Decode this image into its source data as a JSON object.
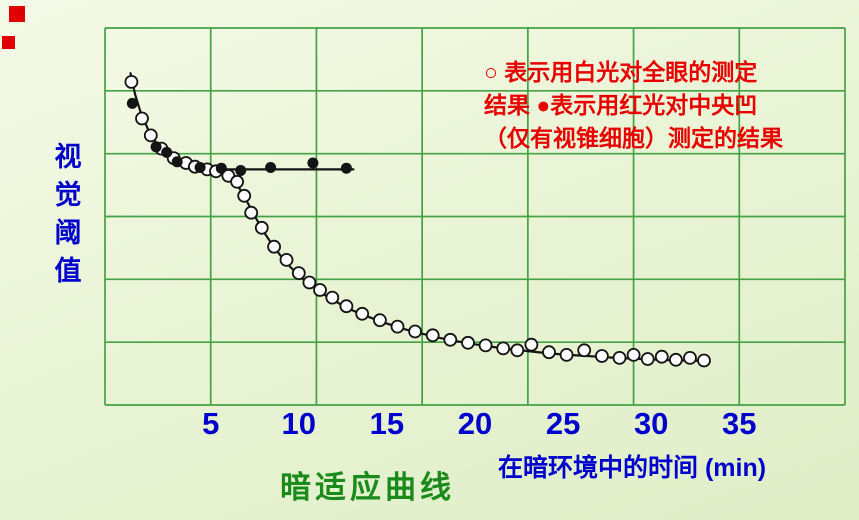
{
  "page": {
    "watermark_color": "#e00000",
    "background_top": "#f5fae8",
    "background_bottom": "#dfeec7"
  },
  "chart_data": {
    "type": "scatter",
    "title": "暗适应曲线",
    "xlabel": "在暗环境中的时间 (min)",
    "ylabel": "视觉阈值",
    "ylabel_chars": [
      "视",
      "觉",
      "阈",
      "值"
    ],
    "x_ticks": [
      5,
      10,
      15,
      20,
      25,
      30,
      35
    ],
    "xlim": [
      -1,
      41
    ],
    "ylim": [
      0,
      10
    ],
    "grid": {
      "on": true,
      "v_lines": 8,
      "h_lines": 7
    },
    "colors": {
      "grid": "#44a244",
      "curve": "#141414",
      "marker_fill": "#ffffff",
      "text_blue": "#0000cc",
      "legend_red": "#e80000",
      "title_green": "#1a8a1a"
    },
    "legend": {
      "position": "top-right",
      "lines": [
        "○  表示用白光对全眼的测定",
        "结果  ●表示用红光对中央凹",
        "（仅有视锥细胞）测定的结果"
      ]
    },
    "series": [
      {
        "name": "white-light-whole-eye",
        "label": "用白光对全眼的测定结果",
        "marker": "open-circle",
        "points": [
          [
            0.5,
            8.57
          ],
          [
            1.1,
            7.6
          ],
          [
            1.6,
            7.15
          ],
          [
            2.2,
            6.8
          ],
          [
            2.9,
            6.55
          ],
          [
            3.6,
            6.42
          ],
          [
            4.1,
            6.32
          ],
          [
            4.8,
            6.25
          ],
          [
            5.3,
            6.2
          ],
          [
            6.0,
            6.08
          ],
          [
            6.5,
            5.92
          ],
          [
            6.9,
            5.55
          ],
          [
            7.3,
            5.1
          ],
          [
            7.9,
            4.7
          ],
          [
            8.6,
            4.2
          ],
          [
            9.3,
            3.85
          ],
          [
            10.0,
            3.5
          ],
          [
            10.6,
            3.25
          ],
          [
            11.2,
            3.05
          ],
          [
            11.9,
            2.85
          ],
          [
            12.7,
            2.62
          ],
          [
            13.6,
            2.42
          ],
          [
            14.6,
            2.25
          ],
          [
            15.6,
            2.08
          ],
          [
            16.6,
            1.95
          ],
          [
            17.6,
            1.85
          ],
          [
            18.6,
            1.73
          ],
          [
            19.6,
            1.65
          ],
          [
            20.6,
            1.58
          ],
          [
            21.6,
            1.5
          ],
          [
            22.4,
            1.45
          ],
          [
            23.2,
            1.6
          ],
          [
            24.2,
            1.4
          ],
          [
            25.2,
            1.33
          ],
          [
            26.2,
            1.45
          ],
          [
            27.2,
            1.3
          ],
          [
            28.2,
            1.25
          ],
          [
            29.0,
            1.33
          ],
          [
            29.8,
            1.22
          ],
          [
            30.6,
            1.28
          ],
          [
            31.4,
            1.2
          ],
          [
            32.2,
            1.25
          ],
          [
            33.0,
            1.18
          ]
        ]
      },
      {
        "name": "red-light-fovea",
        "label": "用红光对中央凹（仅有视锥细胞）测定的结果",
        "marker": "filled-circle",
        "points": [
          [
            0.55,
            8.0
          ],
          [
            1.9,
            6.85
          ],
          [
            2.5,
            6.7
          ],
          [
            3.1,
            6.45
          ],
          [
            4.4,
            6.3
          ],
          [
            5.6,
            6.28
          ],
          [
            6.7,
            6.22
          ],
          [
            8.4,
            6.3
          ],
          [
            10.8,
            6.42
          ],
          [
            12.7,
            6.28
          ]
        ]
      }
    ],
    "curves": [
      {
        "name": "rod-branch-curve",
        "points": [
          [
            0.45,
            8.8
          ],
          [
            0.7,
            8.25
          ],
          [
            1.0,
            7.8
          ],
          [
            1.5,
            7.25
          ],
          [
            2.0,
            6.88
          ],
          [
            2.5,
            6.63
          ],
          [
            3.0,
            6.48
          ],
          [
            3.5,
            6.39
          ],
          [
            4.0,
            6.32
          ],
          [
            4.5,
            6.27
          ],
          [
            5.0,
            6.21
          ],
          [
            5.5,
            6.14
          ],
          [
            6.0,
            6.04
          ],
          [
            6.4,
            5.9
          ],
          [
            6.8,
            5.63
          ],
          [
            7.2,
            5.27
          ],
          [
            7.6,
            4.93
          ],
          [
            8.0,
            4.6
          ],
          [
            8.5,
            4.25
          ],
          [
            9.0,
            3.94
          ],
          [
            9.5,
            3.67
          ],
          [
            10.0,
            3.44
          ],
          [
            10.5,
            3.24
          ],
          [
            11.0,
            3.07
          ],
          [
            11.5,
            2.91
          ],
          [
            12.0,
            2.77
          ],
          [
            12.5,
            2.64
          ],
          [
            13.0,
            2.52
          ],
          [
            13.5,
            2.42
          ],
          [
            14.0,
            2.33
          ],
          [
            15.0,
            2.16
          ],
          [
            16.0,
            2.01
          ],
          [
            17.0,
            1.89
          ],
          [
            18.0,
            1.78
          ],
          [
            19.0,
            1.69
          ],
          [
            20.0,
            1.61
          ],
          [
            21.0,
            1.54
          ],
          [
            22.0,
            1.48
          ],
          [
            23.0,
            1.43
          ],
          [
            24.0,
            1.38
          ],
          [
            25.0,
            1.34
          ],
          [
            26.0,
            1.31
          ],
          [
            27.0,
            1.28
          ],
          [
            28.0,
            1.25
          ],
          [
            29.0,
            1.23
          ],
          [
            30.0,
            1.21
          ],
          [
            31.0,
            1.19
          ],
          [
            32.0,
            1.18
          ],
          [
            33.0,
            1.17
          ]
        ]
      },
      {
        "name": "cone-plateau-line",
        "points": [
          [
            5.8,
            6.25
          ],
          [
            13.1,
            6.25
          ]
        ]
      }
    ]
  }
}
